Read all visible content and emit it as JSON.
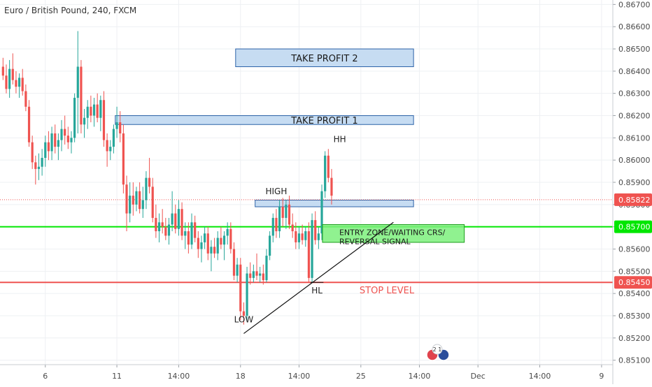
{
  "header": {
    "title": "Euro / British Pound, 240, FXCM"
  },
  "chart_data": {
    "type": "candlestick",
    "title": "Euro / British Pound, 240, FXCM",
    "ylim": [
      0.8508,
      0.8672
    ],
    "y_ticks": [
      0.851,
      0.852,
      0.853,
      0.854,
      0.855,
      0.856,
      0.857,
      0.858,
      0.859,
      0.86,
      0.861,
      0.862,
      0.863,
      0.864,
      0.865,
      0.866,
      0.867
    ],
    "y_tick_labels": [
      "0.85100",
      "0.85200",
      "0.85300",
      "0.85400",
      "0.85500",
      "0.85600",
      "0.85700",
      "0.85800",
      "0.85900",
      "0.86000",
      "0.86100",
      "0.86200",
      "0.86300",
      "0.86400",
      "0.86500",
      "0.86600",
      "0.86700"
    ],
    "x_ticks": [
      {
        "bar": 13,
        "label": "6"
      },
      {
        "bar": 35,
        "label": "11"
      },
      {
        "bar": 54,
        "label": "14:00"
      },
      {
        "bar": 73,
        "label": "18"
      },
      {
        "bar": 91,
        "label": "14:00"
      },
      {
        "bar": 110,
        "label": "25"
      },
      {
        "bar": 128,
        "label": "14:00"
      },
      {
        "bar": 146,
        "label": "Dec"
      },
      {
        "bar": 165,
        "label": "14:00"
      },
      {
        "bar": 184,
        "label": "9"
      }
    ],
    "bar_count": 200,
    "candles": [
      [
        0.8642,
        0.8646,
        0.8636,
        0.8638
      ],
      [
        0.8638,
        0.8643,
        0.863,
        0.8632
      ],
      [
        0.8632,
        0.8645,
        0.8628,
        0.8641
      ],
      [
        0.8641,
        0.8648,
        0.8634,
        0.8636
      ],
      [
        0.8636,
        0.864,
        0.863,
        0.8633
      ],
      [
        0.8633,
        0.8639,
        0.8628,
        0.8637
      ],
      [
        0.8637,
        0.8641,
        0.8629,
        0.8631
      ],
      [
        0.8631,
        0.8634,
        0.8622,
        0.8624
      ],
      [
        0.8624,
        0.8627,
        0.8606,
        0.8608
      ],
      [
        0.8608,
        0.8611,
        0.8596,
        0.8599
      ],
      [
        0.8599,
        0.8602,
        0.8589,
        0.8596
      ],
      [
        0.8596,
        0.8603,
        0.8591,
        0.8597
      ],
      [
        0.8597,
        0.8605,
        0.8593,
        0.8601
      ],
      [
        0.8601,
        0.8611,
        0.8597,
        0.8608
      ],
      [
        0.8608,
        0.8613,
        0.86,
        0.8604
      ],
      [
        0.8604,
        0.8615,
        0.86,
        0.8612
      ],
      [
        0.8612,
        0.8616,
        0.8603,
        0.8606
      ],
      [
        0.8606,
        0.8612,
        0.86,
        0.8609
      ],
      [
        0.8609,
        0.8618,
        0.8604,
        0.8614
      ],
      [
        0.8614,
        0.862,
        0.8607,
        0.8611
      ],
      [
        0.8611,
        0.8615,
        0.8605,
        0.8608
      ],
      [
        0.8608,
        0.8613,
        0.8603,
        0.861
      ],
      [
        0.861,
        0.863,
        0.8608,
        0.8628
      ],
      [
        0.8628,
        0.8658,
        0.8612,
        0.8642
      ],
      [
        0.8642,
        0.8645,
        0.8612,
        0.8616
      ],
      [
        0.8616,
        0.8623,
        0.861,
        0.8619
      ],
      [
        0.8619,
        0.8627,
        0.8614,
        0.8624
      ],
      [
        0.8624,
        0.8629,
        0.8617,
        0.862
      ],
      [
        0.862,
        0.8628,
        0.8615,
        0.8625
      ],
      [
        0.8625,
        0.863,
        0.8617,
        0.8619
      ],
      [
        0.8619,
        0.8629,
        0.8613,
        0.8627
      ],
      [
        0.8627,
        0.8631,
        0.8606,
        0.8609
      ],
      [
        0.8609,
        0.8612,
        0.8597,
        0.8604
      ],
      [
        0.8604,
        0.8609,
        0.86,
        0.8606
      ],
      [
        0.8606,
        0.8616,
        0.8603,
        0.8614
      ],
      [
        0.8614,
        0.8624,
        0.861,
        0.8617
      ],
      [
        0.8617,
        0.8622,
        0.8608,
        0.8612
      ],
      [
        0.8612,
        0.8616,
        0.8585,
        0.8589
      ],
      [
        0.8589,
        0.8593,
        0.8568,
        0.8576
      ],
      [
        0.8576,
        0.859,
        0.8572,
        0.8584
      ],
      [
        0.8584,
        0.859,
        0.8575,
        0.858
      ],
      [
        0.858,
        0.8588,
        0.8577,
        0.8586
      ],
      [
        0.8586,
        0.859,
        0.8576,
        0.8578
      ],
      [
        0.8578,
        0.8588,
        0.8574,
        0.8582
      ],
      [
        0.8582,
        0.8595,
        0.8578,
        0.8592
      ],
      [
        0.8592,
        0.8601,
        0.8585,
        0.8588
      ],
      [
        0.8588,
        0.8592,
        0.8572,
        0.8574
      ],
      [
        0.8574,
        0.858,
        0.8565,
        0.8568
      ],
      [
        0.8568,
        0.8576,
        0.8563,
        0.8572
      ],
      [
        0.8572,
        0.8578,
        0.8567,
        0.857
      ],
      [
        0.857,
        0.8574,
        0.8564,
        0.8566
      ],
      [
        0.8566,
        0.8574,
        0.8562,
        0.8571
      ],
      [
        0.8571,
        0.8586,
        0.8568,
        0.8576
      ],
      [
        0.8576,
        0.858,
        0.8567,
        0.8569
      ],
      [
        0.8569,
        0.8582,
        0.8566,
        0.8578
      ],
      [
        0.8578,
        0.8581,
        0.8564,
        0.8566
      ],
      [
        0.8566,
        0.8572,
        0.856,
        0.8568
      ],
      [
        0.8568,
        0.8572,
        0.8558,
        0.8562
      ],
      [
        0.8562,
        0.8576,
        0.856,
        0.8572
      ],
      [
        0.8572,
        0.8575,
        0.8563,
        0.8565
      ],
      [
        0.8565,
        0.8568,
        0.8556,
        0.856
      ],
      [
        0.856,
        0.8566,
        0.8554,
        0.8563
      ],
      [
        0.8563,
        0.857,
        0.856,
        0.8567
      ],
      [
        0.8567,
        0.857,
        0.8555,
        0.8558
      ],
      [
        0.8558,
        0.8564,
        0.855,
        0.8561
      ],
      [
        0.8561,
        0.8565,
        0.8556,
        0.8558
      ],
      [
        0.8558,
        0.8568,
        0.8555,
        0.8565
      ],
      [
        0.8565,
        0.857,
        0.856,
        0.8562
      ],
      [
        0.8562,
        0.8568,
        0.8555,
        0.8566
      ],
      [
        0.8566,
        0.8572,
        0.8562,
        0.8569
      ],
      [
        0.8569,
        0.8572,
        0.8558,
        0.856
      ],
      [
        0.856,
        0.8563,
        0.8546,
        0.8548
      ],
      [
        0.8548,
        0.8556,
        0.8545,
        0.8553
      ],
      [
        0.8553,
        0.8556,
        0.8528,
        0.8532
      ],
      [
        0.8532,
        0.8536,
        0.8526,
        0.853
      ],
      [
        0.853,
        0.8552,
        0.8528,
        0.8549
      ],
      [
        0.8549,
        0.8554,
        0.8544,
        0.8547
      ],
      [
        0.8547,
        0.8553,
        0.8545,
        0.855
      ],
      [
        0.855,
        0.8558,
        0.8546,
        0.8548
      ],
      [
        0.8548,
        0.8552,
        0.8545,
        0.8549
      ],
      [
        0.8549,
        0.8553,
        0.8544,
        0.8546
      ],
      [
        0.8546,
        0.856,
        0.8545,
        0.8557
      ],
      [
        0.8557,
        0.8568,
        0.8555,
        0.8566
      ],
      [
        0.8566,
        0.8576,
        0.8563,
        0.8574
      ],
      [
        0.8574,
        0.8578,
        0.8565,
        0.8568
      ],
      [
        0.8568,
        0.8582,
        0.8565,
        0.8579
      ],
      [
        0.8579,
        0.8583,
        0.857,
        0.8574
      ],
      [
        0.8574,
        0.8582,
        0.8569,
        0.858
      ],
      [
        0.858,
        0.8584,
        0.8569,
        0.8571
      ],
      [
        0.8571,
        0.8576,
        0.8565,
        0.8568
      ],
      [
        0.8568,
        0.8572,
        0.856,
        0.8563
      ],
      [
        0.8563,
        0.857,
        0.856,
        0.8567
      ],
      [
        0.8567,
        0.8571,
        0.8562,
        0.8564
      ],
      [
        0.8564,
        0.857,
        0.8561,
        0.8568
      ],
      [
        0.8568,
        0.8572,
        0.8545,
        0.8547
      ],
      [
        0.8547,
        0.8576,
        0.8545,
        0.8573
      ],
      [
        0.8573,
        0.8577,
        0.8562,
        0.8564
      ],
      [
        0.8564,
        0.857,
        0.856,
        0.8567
      ],
      [
        0.8567,
        0.8589,
        0.8564,
        0.8586
      ],
      [
        0.8586,
        0.8604,
        0.8583,
        0.8602
      ],
      [
        0.8602,
        0.8605,
        0.859,
        0.8592
      ],
      [
        0.8592,
        0.8596,
        0.858,
        0.8584
      ]
    ],
    "annotations": {
      "take_profit_2": {
        "text": "TAKE PROFIT 2",
        "low": 0.8642,
        "high": 0.865
      },
      "take_profit_1": {
        "text": "TAKE PROFIT 1",
        "low": 0.8616,
        "high": 0.862
      },
      "high_zone": {
        "low": 0.8579,
        "high": 0.8582
      },
      "entry_zone": {
        "text_line1": "ENTRY ZONE/WAITING CRS/",
        "text_line2": "REVERSAL SIGNAL",
        "low": 0.8563,
        "high": 0.8571
      },
      "labels": {
        "high": "HIGH",
        "hh": "HH",
        "hl": "HL",
        "low": "LOW",
        "stop": "STOP LEVEL"
      },
      "trendline": {
        "from": [
          74,
          0.8522
        ],
        "to": [
          120,
          0.8572
        ]
      }
    },
    "price_lines": [
      {
        "label": "0.85822",
        "value": 0.85822,
        "color": "#ef5350",
        "style": "dotted"
      },
      {
        "label": "0.85700",
        "value": 0.857,
        "color": "#00e600",
        "style": "solid"
      },
      {
        "label": "0.85450",
        "value": 0.8545,
        "color": "#ef5350",
        "style": "solid"
      }
    ]
  },
  "colors": {
    "up": "#26a69a",
    "down": "#ef5350",
    "grid": "#eef0f3",
    "axis_text": "#4a4a4a",
    "tp_fill": "#c6dcf2",
    "tp_stroke": "#2d63a8",
    "entry_fill": "#7df07d",
    "entry_stroke": "#1b9e1b"
  },
  "widget": {
    "text": "2 1"
  }
}
